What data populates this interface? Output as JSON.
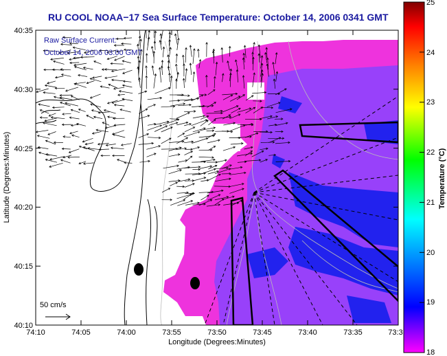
{
  "title": "RU COOL  NOAA−17  Sea Surface Temperature:  October 14, 2006 0341 GMT",
  "current_note": {
    "line1": "Raw Surface Current:",
    "line2": "October 14, 2006 03:00 GMT"
  },
  "scale_label": "50 cm/s",
  "axes": {
    "xlabel": "Longitude (Degrees:Minutes)",
    "ylabel": "Latitude (Degrees:Minutes)",
    "x_ticks": [
      "74:10",
      "74:05",
      "74:00",
      "73:55",
      "73:50",
      "73:45",
      "73:40",
      "73:35",
      "73:3"
    ],
    "y_ticks": [
      "40:35",
      "40:30",
      "40:25",
      "40:20",
      "40:15",
      "40:10"
    ]
  },
  "colorbar": {
    "label": "Temperature (°C)",
    "min": 18,
    "max": 25,
    "ticks": [
      "25",
      "24",
      "23",
      "22",
      "21",
      "20",
      "19",
      "18"
    ],
    "colors": [
      "#ff00ff",
      "#0000ff",
      "#00ffff",
      "#00ff00",
      "#ffff00",
      "#ff8000",
      "#ff0000",
      "#800000"
    ]
  },
  "sst_colors": {
    "warm": "#ee33dd",
    "mid": "#8844ff",
    "cool": "#2222ee"
  },
  "land_color": "#ffffff",
  "vector_color": "#000000"
}
